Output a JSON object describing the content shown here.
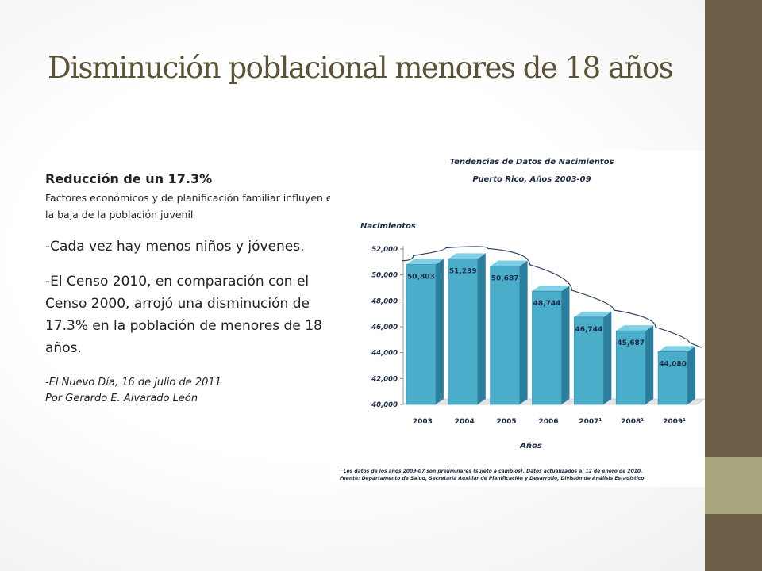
{
  "slide": {
    "title": "Disminución poblacional menores de 18 años"
  },
  "left": {
    "heading": "Reducción de  un 17.3%",
    "subtext": "Factores económicos y de planificación familiar influyen en la baja de la población juvenil",
    "para1": "-Cada vez hay menos niños y jóvenes.",
    "para2": "-El Censo 2010, en comparación con el Censo 2000, arrojó una disminución de 17.3% en la población de menores de 18 años.",
    "cite1": "-El Nuevo Día, 16 de julio de 2011",
    "cite2": " Por Gerardo E. Alvarado León"
  },
  "colors": {
    "sidebar": "#6b5f48",
    "sidebar_band": "#a9a57c",
    "title": "#5c5236",
    "bar": "#4aaecb"
  },
  "chart_data": {
    "type": "bar",
    "title": "Tendencias de Datos de Nacimientos",
    "subtitle": "Puerto Rico, Años 2003-09",
    "ylabel": "Nacimientos",
    "xlabel": "Años",
    "categories": [
      "2003",
      "2004",
      "2005",
      "2006",
      "2007¹",
      "2008¹",
      "2009¹"
    ],
    "values": [
      50803,
      51239,
      50687,
      48744,
      46744,
      45687,
      44080
    ],
    "data_labels": [
      "50,803",
      "51,239",
      "50,687",
      "48,744",
      "46,744",
      "45,687",
      "44,080"
    ],
    "ylim": [
      40000,
      52000
    ],
    "yticks": [
      40000,
      42000,
      44000,
      46000,
      48000,
      50000,
      52000
    ],
    "ytick_labels": [
      "40,000",
      "42,000",
      "44,000",
      "46,000",
      "48,000",
      "50,000",
      "52,000"
    ],
    "trend_line": true,
    "grid": false,
    "footnote1": "¹ Los datos de los años 2009-07 son preliminares (sujeto a cambios). Datos actualizados al 12 de enero de 2010.",
    "footnote2": "Fuente: Departamento de Salud, Secretaría Auxiliar de Planificación y Desarrollo, División de Análisis Estadístico"
  }
}
